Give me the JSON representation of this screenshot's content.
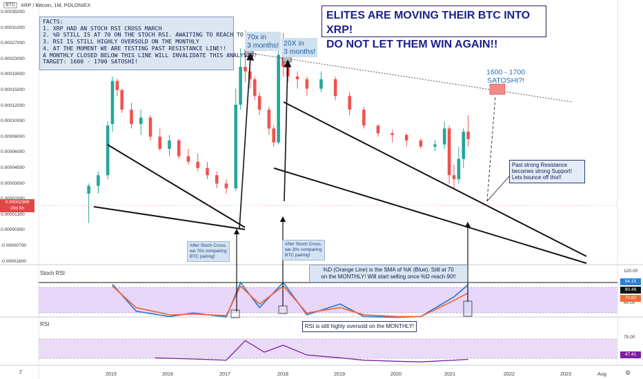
{
  "header": {
    "chip": "BTC",
    "title": "XRP / Bitcoin, 1M, POLONIEX"
  },
  "headline": [
    "ELITES ARE MOVING THEIR BTC INTO XRP!",
    "DO NOT LET THEM WIN AGAIN!!"
  ],
  "facts": [
    "FACTS:",
    "1. XRP HAD AN STOCH RSI CROSS MARCH",
    "2. %D STILL IS AT 70 ON THE STOCH RSI. AWAITING TO REACH TO 90!!",
    "3. RSI IS STILL HIGHLY OVERSOLD ON THE MONTHLY",
    "4. AT THE MOMENT WE ARE TESTING PAST RESISTANCE LINE!!",
    "A MONTHLY CLOSED BELOW THIS LINE WILL INVALIDATE THIS ANALYSIS!",
    "",
    "TARGET: 1600 - 1700 SATOSHI!"
  ],
  "callouts": {
    "tag_70x": [
      "70x in",
      "3 months!"
    ],
    "tag_20x": [
      "20X in",
      "3 months!"
    ],
    "target": [
      "1600 - 1700",
      "SATOSHI?!"
    ],
    "support": [
      "Past strong Resistance",
      "becomes strong Support!",
      "Lets bounce off this!!"
    ],
    "stoch_cross_1": [
      "After Stoch Cross,",
      "we 70x comparing",
      "BTC pairing!"
    ],
    "stoch_cross_2": [
      "After Stoch Cross,",
      "we 20x comparing",
      "BTC pairing!"
    ],
    "d_note": [
      "%D (Orange Line) is the SMA of %K (Blue). Still at 70",
      "on the MONTHLY! Will start selling once %D reach 90!!"
    ],
    "rsi_note": "RSI is still highly oversold on the MONTHLY!"
  },
  "price_axis": {
    "ticks": [
      "0.00035000",
      "0.00031000",
      "0.00027000",
      "0.00023000",
      "0.00019000",
      "0.00015000",
      "0.00012000",
      "0.00010000",
      "0.00008000",
      "0.00006000",
      "0.00004500",
      "0.00003000",
      "0.00002000",
      "0.00001300",
      "0.00000300",
      "-0.00000700",
      "-0.00001800"
    ],
    "last_price": "0.00002369",
    "countdown": "20d 5h"
  },
  "panes": {
    "stoch_label": "Stoch RSI",
    "stoch_ticks": [
      "120.00",
      "40.00"
    ],
    "stoch_k": "94.15",
    "stoch_level": "90.46",
    "stoch_d": "70.82",
    "rsi_label": "RSI",
    "rsi_tick": "75.00",
    "rsi_value": "47.41"
  },
  "time_axis": [
    "2015",
    "2016",
    "2017",
    "2018",
    "2019",
    "2020",
    "2021",
    "2022",
    "2023",
    "Aug"
  ],
  "footer": {
    "z_button": "Z",
    "gear": "⚙"
  },
  "colors": {
    "up": "#26a69a",
    "down": "#ef5350",
    "stoch_k": "#2a7fd4",
    "stoch_d": "#f26a3a",
    "rsi": "#7b1fa2",
    "band": "#e9d6fb",
    "target_box": "#f08a8a"
  },
  "chart_data": [
    {
      "type": "candlestick",
      "title": "XRP / Bitcoin, 1M, POLONIEX",
      "xlabel": "",
      "ylabel": "",
      "x_ticks": [
        "2015",
        "2016",
        "2017",
        "2018",
        "2019",
        "2020",
        "2021",
        "2022",
        "2023"
      ],
      "ylim": [
        -1.8e-05,
        0.00035
      ],
      "scale": "log-like (TradingView auto)",
      "series": [
        {
          "name": "XRP/BTC monthly",
          "points": [
            {
              "t": "2014-08",
              "o": 6e-06,
              "h": 8e-06,
              "l": 2e-06,
              "c": 7.5e-06
            },
            {
              "t": "2014-10",
              "o": 7.5e-06,
              "h": 1.1e-05,
              "l": 6e-06,
              "c": 1e-05
            },
            {
              "t": "2014-12",
              "o": 1e-05,
              "h": 3.5e-05,
              "l": 9e-06,
              "c": 3.2e-05
            },
            {
              "t": "2015-01",
              "o": 3.3e-05,
              "h": 9e-05,
              "l": 2.8e-05,
              "c": 8.2e-05
            },
            {
              "t": "2015-02",
              "o": 8.2e-05,
              "h": 8.6e-05,
              "l": 6e-05,
              "c": 6.8e-05
            },
            {
              "t": "2015-03",
              "o": 6.8e-05,
              "h": 7e-05,
              "l": 4.2e-05,
              "c": 4.5e-05
            },
            {
              "t": "2015-05",
              "o": 4.5e-05,
              "h": 5.2e-05,
              "l": 3e-05,
              "c": 3.3e-05
            },
            {
              "t": "2015-07",
              "o": 3.3e-05,
              "h": 4.5e-05,
              "l": 2.6e-05,
              "c": 3.8e-05
            },
            {
              "t": "2015-09",
              "o": 3.8e-05,
              "h": 4e-05,
              "l": 2.3e-05,
              "c": 2.5e-05
            },
            {
              "t": "2015-11",
              "o": 2.5e-05,
              "h": 3e-05,
              "l": 1.8e-05,
              "c": 1.9e-05
            },
            {
              "t": "2016-01",
              "o": 1.9e-05,
              "h": 2.6e-05,
              "l": 1.6e-05,
              "c": 2.3e-05
            },
            {
              "t": "2016-03",
              "o": 2.3e-05,
              "h": 2.4e-05,
              "l": 1.5e-05,
              "c": 1.6e-05
            },
            {
              "t": "2016-05",
              "o": 1.6e-05,
              "h": 1.9e-05,
              "l": 1.3e-05,
              "c": 1.4e-05
            },
            {
              "t": "2016-07",
              "o": 1.4e-05,
              "h": 1.7e-05,
              "l": 1.1e-05,
              "c": 1.2e-05
            },
            {
              "t": "2016-09",
              "o": 1.2e-05,
              "h": 1.4e-05,
              "l": 9e-06,
              "c": 1e-05
            },
            {
              "t": "2016-11",
              "o": 1e-05,
              "h": 1.1e-05,
              "l": 7e-06,
              "c": 8e-06
            },
            {
              "t": "2017-01",
              "o": 8e-06,
              "h": 9e-06,
              "l": 6e-06,
              "c": 7e-06
            },
            {
              "t": "2017-03",
              "o": 7e-06,
              "h": 7e-05,
              "l": 6.5e-06,
              "c": 5e-05
            },
            {
              "t": "2017-04",
              "o": 5e-05,
              "h": 0.00016,
              "l": 4.5e-05,
              "c": 0.00011
            },
            {
              "t": "2017-05",
              "o": 0.00011,
              "h": 0.00023,
              "l": 8e-05,
              "c": 0.0001
            },
            {
              "t": "2017-06",
              "o": 0.0001,
              "h": 0.00012,
              "l": 7e-05,
              "c": 8.5e-05
            },
            {
              "t": "2017-07",
              "o": 8.5e-05,
              "h": 9e-05,
              "l": 5.5e-05,
              "c": 6e-05
            },
            {
              "t": "2017-08",
              "o": 6e-05,
              "h": 6.5e-05,
              "l": 4e-05,
              "c": 4.5e-05
            },
            {
              "t": "2017-10",
              "o": 4.5e-05,
              "h": 4.8e-05,
              "l": 2.6e-05,
              "c": 3e-05
            },
            {
              "t": "2017-11",
              "o": 3e-05,
              "h": 3.2e-05,
              "l": 2e-05,
              "c": 2.2e-05
            },
            {
              "t": "2017-12",
              "o": 2.2e-05,
              "h": 0.000155,
              "l": 2.1e-05,
              "c": 0.00014
            },
            {
              "t": "2018-01",
              "o": 0.00014,
              "h": 0.00022,
              "l": 9e-05,
              "c": 0.00011
            },
            {
              "t": "2018-02",
              "o": 0.00011,
              "h": 0.000115,
              "l": 8e-05,
              "c": 9e-05
            },
            {
              "t": "2018-04",
              "o": 9e-05,
              "h": 0.0001,
              "l": 7e-05,
              "c": 8.5e-05
            },
            {
              "t": "2018-06",
              "o": 8.5e-05,
              "h": 9e-05,
              "l": 6e-05,
              "c": 7e-05
            },
            {
              "t": "2018-09",
              "o": 7e-05,
              "h": 0.0001,
              "l": 6.5e-05,
              "c": 8.5e-05
            },
            {
              "t": "2018-12",
              "o": 8.5e-05,
              "h": 9e-05,
              "l": 5.5e-05,
              "c": 6e-05
            },
            {
              "t": "2019-03",
              "o": 6e-05,
              "h": 6.5e-05,
              "l": 4e-05,
              "c": 4.5e-05
            },
            {
              "t": "2019-06",
              "o": 4.5e-05,
              "h": 4.8e-05,
              "l": 3e-05,
              "c": 3.2e-05
            },
            {
              "t": "2019-09",
              "o": 3.2e-05,
              "h": 3.3e-05,
              "l": 2.5e-05,
              "c": 2.7e-05
            },
            {
              "t": "2019-12",
              "o": 2.7e-05,
              "h": 2.9e-05,
              "l": 2.2e-05,
              "c": 2.6e-05
            },
            {
              "t": "2020-03",
              "o": 2.6e-05,
              "h": 2.7e-05,
              "l": 2e-05,
              "c": 2.3e-05
            },
            {
              "t": "2020-06",
              "o": 2.3e-05,
              "h": 2.4e-05,
              "l": 1.9e-05,
              "c": 2e-05
            },
            {
              "t": "2020-09",
              "o": 2e-05,
              "h": 2.3e-05,
              "l": 1.8e-05,
              "c": 2.1e-05
            },
            {
              "t": "2020-11",
              "o": 2.1e-05,
              "h": 3.5e-05,
              "l": 1.9e-05,
              "c": 3e-05
            },
            {
              "t": "2020-12",
              "o": 3e-05,
              "h": 3.2e-05,
              "l": 8e-06,
              "c": 1e-05
            },
            {
              "t": "2021-01",
              "o": 1e-05,
              "h": 1.3e-05,
              "l": 7e-06,
              "c": 9e-06
            },
            {
              "t": "2021-02",
              "o": 9e-06,
              "h": 2e-05,
              "l": 8e-06,
              "c": 1.5e-05
            },
            {
              "t": "2021-03",
              "o": 1.5e-05,
              "h": 3e-05,
              "l": 1.2e-05,
              "c": 2.8e-05
            },
            {
              "t": "2021-04",
              "o": 2.8e-05,
              "h": 4e-05,
              "l": 2e-05,
              "c": 2.37e-05
            }
          ]
        }
      ],
      "annotations": [
        "70x in 3 months!",
        "20X in 3 months!",
        "1600 - 1700 SATOSHI?!"
      ]
    },
    {
      "type": "line",
      "title": "Stoch RSI",
      "ylim": [
        0,
        120
      ],
      "series": [
        {
          "name": "%K",
          "x": [
            "2015-01",
            "2015-06",
            "2016-01",
            "2016-06",
            "2017-01",
            "2017-04",
            "2017-08",
            "2018-01",
            "2018-06",
            "2019-01",
            "2019-06",
            "2020-01",
            "2020-06",
            "2021-01",
            "2021-04"
          ],
          "values": [
            95,
            20,
            5,
            15,
            4,
            100,
            30,
            100,
            10,
            40,
            5,
            3,
            5,
            60,
            94.15
          ]
        },
        {
          "name": "%D",
          "x": [
            "2015-01",
            "2015-06",
            "2016-01",
            "2016-06",
            "2017-01",
            "2017-04",
            "2017-08",
            "2018-01",
            "2018-06",
            "2019-01",
            "2019-06",
            "2020-01",
            "2020-06",
            "2021-01",
            "2021-04"
          ],
          "values": [
            90,
            30,
            10,
            12,
            8,
            90,
            40,
            90,
            15,
            30,
            10,
            5,
            5,
            50,
            70.82
          ]
        }
      ],
      "levels": [
        90.46,
        40
      ]
    },
    {
      "type": "line",
      "title": "RSI",
      "ylim": [
        25,
        100
      ],
      "series": [
        {
          "name": "RSI",
          "x": [
            "2015-10",
            "2016-06",
            "2017-01",
            "2017-05",
            "2017-09",
            "2018-01",
            "2018-06",
            "2019-01",
            "2019-06",
            "2020-01",
            "2020-06",
            "2021-01",
            "2021-04"
          ],
          "values": [
            50,
            48,
            46,
            80,
            60,
            72,
            55,
            50,
            46,
            44,
            43,
            46,
            47.41
          ]
        }
      ],
      "levels": [
        75
      ]
    }
  ]
}
